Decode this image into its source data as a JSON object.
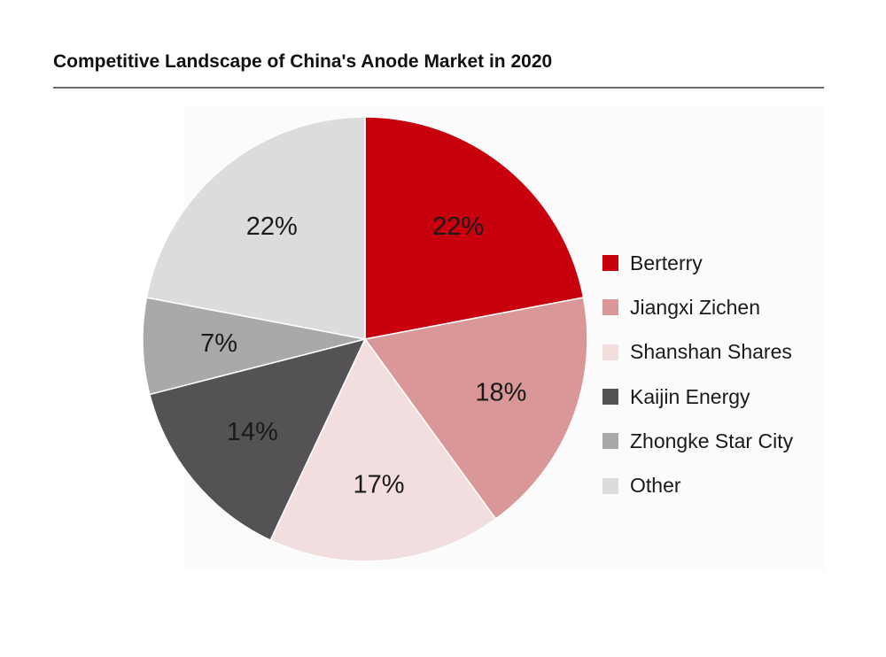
{
  "title": "Competitive Landscape of China's Anode Market in 2020",
  "chart_data": {
    "type": "pie",
    "title": "Competitive Landscape of China's Anode Market in 2020",
    "legend_position": "right",
    "slices": [
      {
        "name": "Berterry",
        "value": 22,
        "label": "22%",
        "color": "#c8000e"
      },
      {
        "name": "Jiangxi Zichen",
        "value": 18,
        "label": "18%",
        "color": "#d99797"
      },
      {
        "name": "Shanshan Shares",
        "value": 17,
        "label": "17%",
        "color": "#f2dede"
      },
      {
        "name": "Kaijin Energy",
        "value": 14,
        "label": "14%",
        "color": "#545254"
      },
      {
        "name": "Zhongke Star City",
        "value": 7,
        "label": "7%",
        "color": "#a9a8aa"
      },
      {
        "name": "Other",
        "value": 22,
        "label": "22%",
        "color": "#dcdbdd"
      }
    ]
  }
}
